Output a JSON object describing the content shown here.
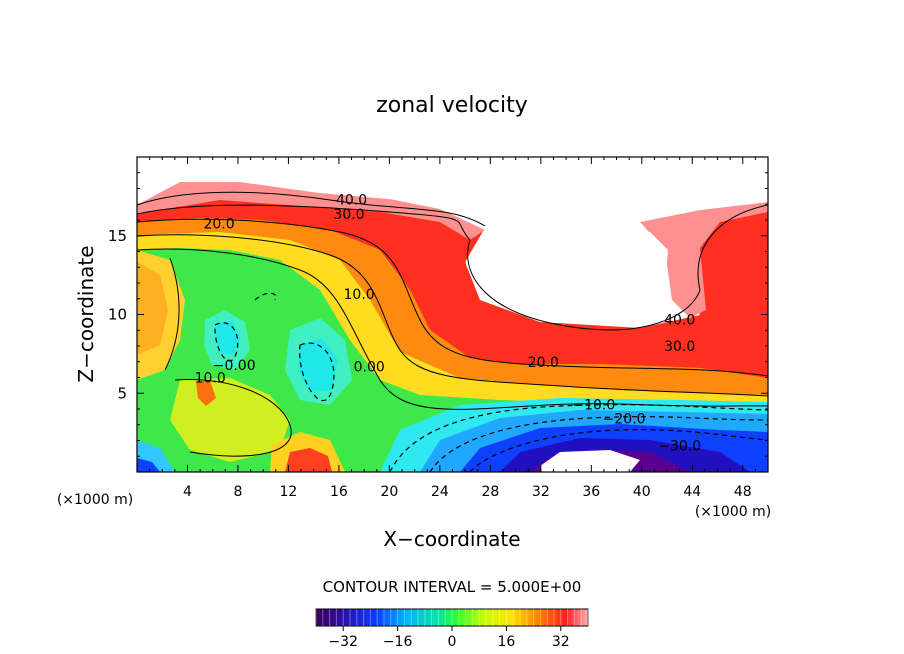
{
  "chart_data": {
    "type": "heatmap",
    "title": "zonal velocity",
    "xlabel": "X−coordinate",
    "ylabel": "Z−coordinate",
    "x_unit_left": "(×1000 m)",
    "x_unit_right": "(×1000 m)",
    "xlim": [
      0,
      50
    ],
    "ylim": [
      0,
      20
    ],
    "xticks": [
      4,
      8,
      12,
      16,
      20,
      24,
      28,
      32,
      36,
      40,
      44,
      48
    ],
    "yticks": [
      5,
      10,
      15
    ],
    "contour_interval_text": "CONTOUR INTERVAL = 5.000E+00",
    "contour_interval": 5.0,
    "contour_labels": [
      {
        "text": "40.0",
        "x": 17.0,
        "y": 17.1
      },
      {
        "text": "30.0",
        "x": 16.8,
        "y": 16.2
      },
      {
        "text": "20.0",
        "x": 6.5,
        "y": 15.6
      },
      {
        "text": "10.0",
        "x": 17.6,
        "y": 11.1
      },
      {
        "text": "0.00",
        "x": 18.4,
        "y": 6.5
      },
      {
        "text": "−0.00",
        "x": 7.7,
        "y": 6.6
      },
      {
        "text": "10.0",
        "x": 5.8,
        "y": 5.8
      },
      {
        "text": "40.0",
        "x": 43.0,
        "y": 9.5
      },
      {
        "text": "30.0",
        "x": 43.0,
        "y": 7.8
      },
      {
        "text": "20.0",
        "x": 32.2,
        "y": 6.8
      },
      {
        "text": "−10.0",
        "x": 36.2,
        "y": 4.1
      },
      {
        "text": "−20.0",
        "x": 38.6,
        "y": 3.2
      },
      {
        "text": "−30.0",
        "x": 43.0,
        "y": 1.5
      }
    ],
    "colorbar": {
      "min": -40,
      "max": 40,
      "ticks": [
        -32,
        -16,
        0,
        16,
        32
      ],
      "tick_labels": [
        "−32",
        "−16",
        "0",
        "16",
        "32"
      ]
    }
  }
}
